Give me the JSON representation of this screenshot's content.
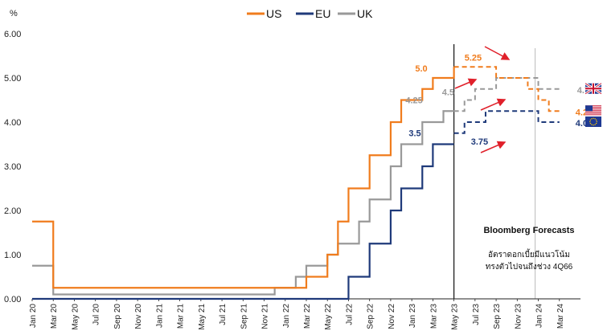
{
  "chart_data": {
    "type": "line",
    "ylabel": "%",
    "ylim": [
      0,
      6
    ],
    "yticks": [
      "0.00",
      "1.00",
      "2.00",
      "3.00",
      "4.00",
      "5.00",
      "6.00"
    ],
    "x_start": "Jan 20",
    "x_end": "May 24",
    "xticks": [
      "Jan 20",
      "Mar 20",
      "May 20",
      "Jul 20",
      "Sep 20",
      "Nov 20",
      "Jan 21",
      "Mar 21",
      "May 21",
      "Jul 21",
      "Sep 21",
      "Nov 21",
      "Jan 22",
      "Mar 22",
      "May 22",
      "Jul 22",
      "Sep 22",
      "Nov 22",
      "Jan 23",
      "Mar 23",
      "May 23",
      "Jul 23",
      "Sep 23",
      "Nov 23",
      "Jan 24",
      "Mar 24"
    ],
    "forecast_start": "May 23",
    "forecast_marker": "Dec 23",
    "series": [
      {
        "name": "US",
        "color": "#f07c1d",
        "actual": [
          [
            "Jan 20",
            1.75
          ],
          [
            "Mar 20",
            1.25
          ],
          [
            "Mar 20",
            0.25
          ],
          [
            "Mar 22",
            0.5
          ],
          [
            "May 22",
            1.0
          ],
          [
            "Jun 22",
            1.75
          ],
          [
            "Jul 22",
            2.5
          ],
          [
            "Sep 22",
            3.25
          ],
          [
            "Nov 22",
            4.0
          ],
          [
            "Dec 22",
            4.5
          ],
          [
            "Feb 23",
            4.75
          ],
          [
            "Mar 23",
            5.0
          ],
          [
            "May 23",
            5.25
          ]
        ],
        "forecast": [
          [
            "May 23",
            5.25
          ],
          [
            "Sep 23",
            5.0
          ],
          [
            "Dec 23",
            4.75
          ],
          [
            "Jan 24",
            4.5
          ],
          [
            "Feb 24",
            4.25
          ],
          [
            "Mar 24",
            4.25
          ]
        ]
      },
      {
        "name": "EU",
        "color": "#1f3a7a",
        "actual": [
          [
            "Jan 20",
            0.0
          ],
          [
            "Jul 22",
            0.5
          ],
          [
            "Sep 22",
            1.25
          ],
          [
            "Nov 22",
            2.0
          ],
          [
            "Dec 22",
            2.5
          ],
          [
            "Feb 23",
            3.0
          ],
          [
            "Mar 23",
            3.5
          ],
          [
            "May 23",
            3.5
          ]
        ],
        "forecast": [
          [
            "May 23",
            3.75
          ],
          [
            "Jun 23",
            4.0
          ],
          [
            "Jul 23",
            4.0
          ],
          [
            "Aug 23",
            4.25
          ],
          [
            "Dec 23",
            4.25
          ],
          [
            "Jan 24",
            4.0
          ],
          [
            "Mar 24",
            4.0
          ]
        ]
      },
      {
        "name": "UK",
        "color": "#999999",
        "actual": [
          [
            "Jan 20",
            0.75
          ],
          [
            "Mar 20",
            0.25
          ],
          [
            "Mar 20",
            0.1
          ],
          [
            "Dec 21",
            0.25
          ],
          [
            "Feb 22",
            0.5
          ],
          [
            "Mar 22",
            0.75
          ],
          [
            "May 22",
            1.0
          ],
          [
            "Jun 22",
            1.25
          ],
          [
            "Aug 22",
            1.75
          ],
          [
            "Sep 22",
            2.25
          ],
          [
            "Nov 22",
            3.0
          ],
          [
            "Dec 22",
            3.5
          ],
          [
            "Feb 23",
            4.0
          ],
          [
            "Apr 23",
            4.25
          ],
          [
            "May 23",
            4.25
          ]
        ],
        "forecast": [
          [
            "May 23",
            4.25
          ],
          [
            "Jun 23",
            4.5
          ],
          [
            "Jul 23",
            4.75
          ],
          [
            "Sep 23",
            5.0
          ],
          [
            "Dec 23",
            5.0
          ],
          [
            "Jan 24",
            4.75
          ],
          [
            "Mar 24",
            4.75
          ]
        ]
      }
    ],
    "annotations": [
      {
        "text": "5.0",
        "series": "US",
        "at": [
          "Mar 23",
          5.0
        ]
      },
      {
        "text": "5.25",
        "series": "US",
        "at": [
          "Jun 23",
          5.25
        ]
      },
      {
        "text": "4.25",
        "series": "UK",
        "at": [
          "Mar 23",
          4.25
        ]
      },
      {
        "text": "4.5",
        "series": "UK",
        "at": [
          "Jun 23",
          4.5
        ]
      },
      {
        "text": "3.5",
        "series": "EU",
        "at": [
          "Mar 23",
          3.5
        ]
      },
      {
        "text": "3.75",
        "series": "EU",
        "at": [
          "Jun 23",
          3.75
        ]
      },
      {
        "text": "4.75",
        "series": "UK",
        "at": [
          "Mar 24",
          4.75
        ]
      },
      {
        "text": "4.25",
        "series": "US",
        "at": [
          "Mar 24",
          4.25
        ]
      },
      {
        "text": "4.00",
        "series": "EU",
        "at": [
          "Mar 24",
          4.0
        ]
      }
    ],
    "flags": [
      "uk-flag-icon",
      "us-flag-icon",
      "eu-flag-icon"
    ],
    "arrow_color": "#e0202a",
    "forecast_title": "Bloomberg Forecasts",
    "forecast_note_line1": "อัตราดอกเบี้ยมีแนวโน้ม",
    "forecast_note_line2": "ทรงตัวไปจนถึงช่วง 4Q66"
  }
}
